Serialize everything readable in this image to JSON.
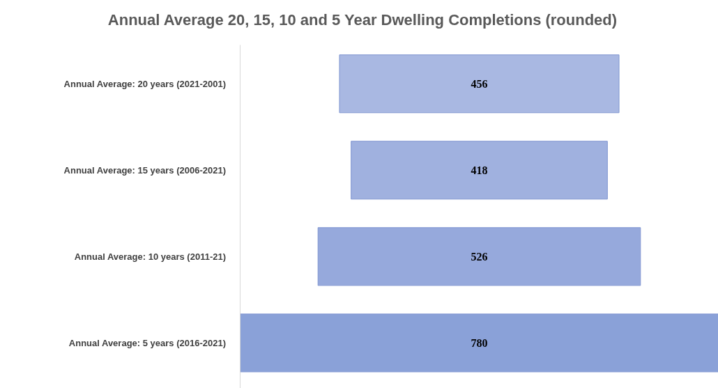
{
  "chart_data": {
    "type": "other",
    "title": "Annual Average  20, 15, 10 and 5 Year Dwelling Completions (rounded)",
    "categories": [
      "Annual Average: 20 years (2021-2001)",
      "Annual Average: 15 years (2006-2021)",
      "Annual Average: 10 years (2011-21)",
      "Annual Average: 5 years (2016-2021)"
    ],
    "values": [
      456,
      418,
      526,
      780
    ],
    "colors": [
      "#a9b8e2",
      "#a0b1df",
      "#96a9dc",
      "#8aa1d8"
    ],
    "data_labels": true
  }
}
